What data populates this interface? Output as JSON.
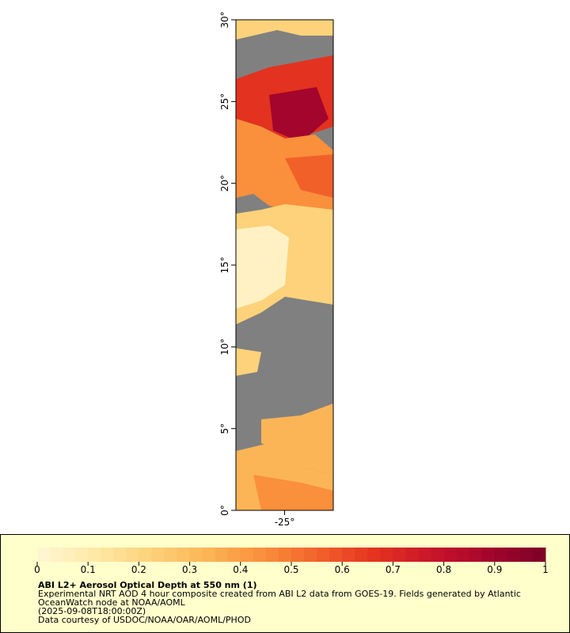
{
  "map": {
    "xlim": [
      -28,
      -22
    ],
    "ylim": [
      0,
      30
    ],
    "xticks": [
      {
        "value": -25,
        "label": "-25°"
      }
    ],
    "yticks": [
      {
        "value": 0,
        "label": "0°"
      },
      {
        "value": 5,
        "label": "5°"
      },
      {
        "value": 10,
        "label": "10°"
      },
      {
        "value": 15,
        "label": "15°"
      },
      {
        "value": 20,
        "label": "20°"
      },
      {
        "value": 25,
        "label": "25°"
      },
      {
        "value": 30,
        "label": "30°"
      }
    ]
  },
  "legend": {
    "colorbar": {
      "lim": [
        0,
        1
      ],
      "ticks": [
        0,
        0.1,
        0.2,
        0.3,
        0.4,
        0.5,
        0.6,
        0.7,
        0.8,
        0.9,
        1
      ],
      "colors": [
        "#fff6d4",
        "#ffe9a8",
        "#fdd27a",
        "#fcb556",
        "#fa8f3c",
        "#f2602a",
        "#e3321f",
        "#c8142a",
        "#a4052c",
        "#7b0024"
      ]
    },
    "title": "ABI L2+ Aerosol Optical Depth at 550 nm (1)",
    "lines": [
      "Experimental NRT AOD 4 hour composite created from ABI L2 data from GOES-19. Fields generated by Atlantic",
      "OceanWatch node at NOAA/AOML",
      "(2025-09-08T18:00:00Z)",
      "Data courtesy of USDOC/NOAA/OAR/AOML/PHOD"
    ]
  }
}
